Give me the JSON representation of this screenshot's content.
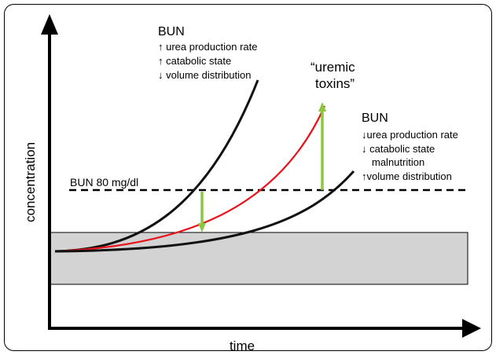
{
  "axes": {
    "x_label": "time",
    "y_label": "concentration"
  },
  "reference_line": {
    "label": "BUN 80 mg/dl"
  },
  "annotations": {
    "bun_fast": {
      "title": "BUN",
      "lines": [
        "↑ urea production rate",
        "↑ catabolic state",
        "↓ volume distribution"
      ]
    },
    "uremic_toxins": {
      "lines": [
        "“uremic",
        "toxins”"
      ]
    },
    "bun_slow": {
      "title": "BUN",
      "lines": [
        "↓urea production rate",
        "↓ catabolic state",
        "malnutrition",
        "↑volume distribution"
      ]
    }
  },
  "colors": {
    "frame": "#000000",
    "normal_range_fill": "#d3d3d3",
    "bun_curves": "#111111",
    "toxin_curve": "#e8141b",
    "arrows": "#8dc63f"
  }
}
